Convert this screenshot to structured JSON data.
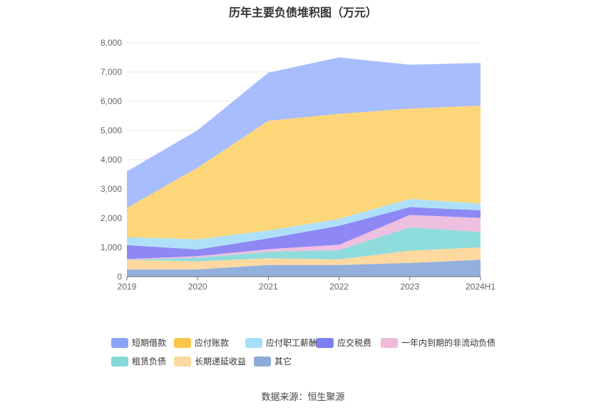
{
  "chart_data": {
    "type": "area",
    "stacked": true,
    "title": "历年主要负债堆积图（万元）",
    "x": [
      "2019",
      "2020",
      "2021",
      "2022",
      "2023",
      "2024H1"
    ],
    "ylim": [
      0,
      8000
    ],
    "yticks": [
      "0",
      "1,000",
      "2,000",
      "3,000",
      "4,000",
      "5,000",
      "6,000",
      "7,000",
      "8,000"
    ],
    "grid": true,
    "legend_position": "bottom",
    "series": [
      {
        "name": "其它",
        "color": "#93b0dc",
        "values": [
          250,
          250,
          400,
          400,
          470,
          580
        ]
      },
      {
        "name": "长期递延收益",
        "color": "#fdd9a0",
        "values": [
          330,
          270,
          230,
          190,
          420,
          420
        ]
      },
      {
        "name": "租赁负债",
        "color": "#8fdcdc",
        "values": [
          0,
          130,
          220,
          320,
          800,
          530
        ]
      },
      {
        "name": "一年内到期的非流动负债",
        "color": "#efbfe0",
        "values": [
          20,
          50,
          90,
          180,
          420,
          480
        ]
      },
      {
        "name": "应交税费",
        "color": "#8d88f4",
        "values": [
          480,
          230,
          370,
          650,
          270,
          260
        ]
      },
      {
        "name": "应付职工薪酬",
        "color": "#aee1f9",
        "values": [
          270,
          350,
          270,
          240,
          280,
          230
        ]
      },
      {
        "name": "应付账款",
        "color": "#fed67a",
        "values": [
          1000,
          2450,
          3750,
          3590,
          3090,
          3350
        ]
      },
      {
        "name": "短期借款",
        "color": "#a8bdfd",
        "values": [
          1250,
          1280,
          1650,
          1930,
          1500,
          1460
        ]
      }
    ]
  },
  "legend_order": [
    {
      "name": "短期借款",
      "color": "#8aa4f7"
    },
    {
      "name": "应付账款",
      "color": "#fbc549"
    },
    {
      "name": "应付职工薪酬",
      "color": "#a6dff8"
    },
    {
      "name": "应交税费",
      "color": "#7c80f2"
    },
    {
      "name": "一年内到期的非流动负债",
      "color": "#efbad9"
    },
    {
      "name": "租赁负债",
      "color": "#85d8d8"
    },
    {
      "name": "长期递延收益",
      "color": "#fcd9a0"
    },
    {
      "name": "其它",
      "color": "#8fabd8"
    }
  ],
  "source": "数据来源：恒生聚源"
}
